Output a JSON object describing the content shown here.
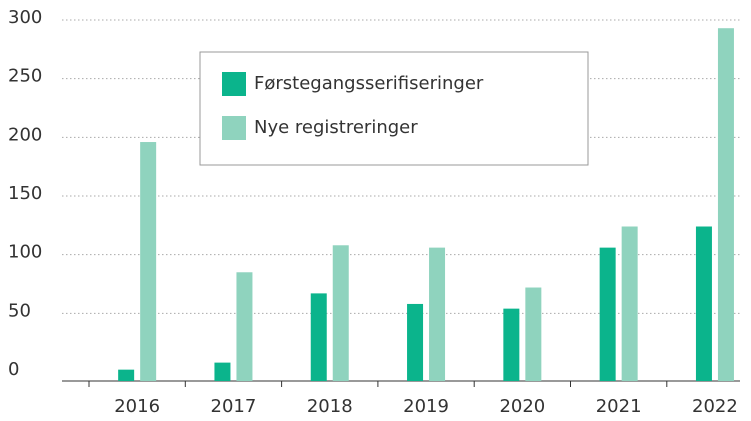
{
  "chart_data": {
    "type": "bar",
    "categories": [
      "2016",
      "2017",
      "2018",
      "2019",
      "2020",
      "2021",
      "2022"
    ],
    "series": [
      {
        "name": "Førstegangsserifiseringer",
        "color": "#0bb48c",
        "values": [
          2,
          8,
          67,
          58,
          54,
          106,
          124
        ]
      },
      {
        "name": "Nye registreringer",
        "color": "#8fd3be",
        "values": [
          196,
          85,
          108,
          106,
          72,
          124,
          293
        ]
      }
    ],
    "ylim": [
      0,
      300
    ],
    "yticks": [
      0,
      50,
      100,
      150,
      200,
      250,
      300
    ],
    "grid": true
  }
}
